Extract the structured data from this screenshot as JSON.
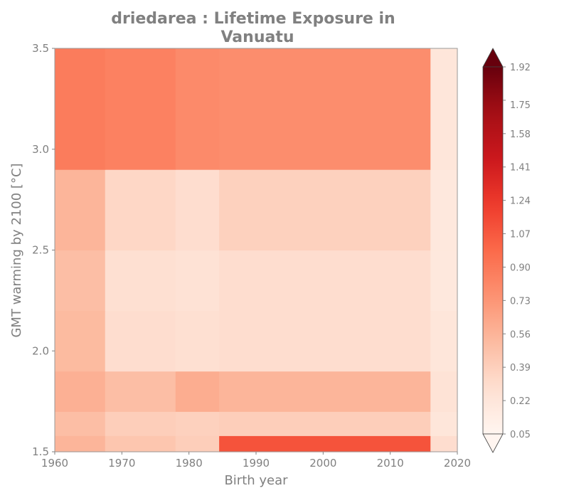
{
  "chart_data": {
    "type": "heatmap",
    "title_lines": [
      "driedarea : Lifetime Exposure in",
      "Vanuatu"
    ],
    "xlabel": "Birth year",
    "ylabel": "GMT warming by 2100 [°C]",
    "xlim": [
      1960,
      2020
    ],
    "ylim": [
      1.5,
      3.5
    ],
    "x_ticks": [
      1960,
      1970,
      1980,
      1990,
      2000,
      2010,
      2020
    ],
    "y_ticks": [
      1.5,
      2.0,
      2.5,
      3.0,
      3.5
    ],
    "y_tick_labels": [
      "1.5",
      "2.0",
      "2.5",
      "3.0",
      "3.5"
    ],
    "colormap": "Reds",
    "colorbar": {
      "min": 0.05,
      "max": 1.92,
      "extend": "both",
      "ticks": [
        0.05,
        0.22,
        0.39,
        0.56,
        0.73,
        0.9,
        1.07,
        1.24,
        1.41,
        1.58,
        1.75,
        1.92
      ],
      "tick_labels": [
        "0.05",
        "0.22",
        "0.39",
        "0.56",
        "0.73",
        "0.90",
        "1.07",
        "1.24",
        "1.41",
        "1.58",
        "1.75",
        "1.92"
      ]
    },
    "x_edges": [
      1960,
      1967.5,
      1978,
      1984.5,
      2016,
      2020
    ],
    "y_edges": [
      1.5,
      1.58,
      1.7,
      1.9,
      2.2,
      2.5,
      2.9,
      3.5
    ],
    "values": [
      [
        0.55,
        0.45,
        0.4,
        1.1,
        0.3
      ],
      [
        0.5,
        0.4,
        0.38,
        0.4,
        0.22
      ],
      [
        0.58,
        0.5,
        0.6,
        0.55,
        0.25
      ],
      [
        0.52,
        0.3,
        0.28,
        0.3,
        0.22
      ],
      [
        0.5,
        0.28,
        0.26,
        0.3,
        0.2
      ],
      [
        0.55,
        0.34,
        0.3,
        0.38,
        0.2
      ],
      [
        0.88,
        0.85,
        0.8,
        0.78,
        0.22
      ]
    ]
  }
}
